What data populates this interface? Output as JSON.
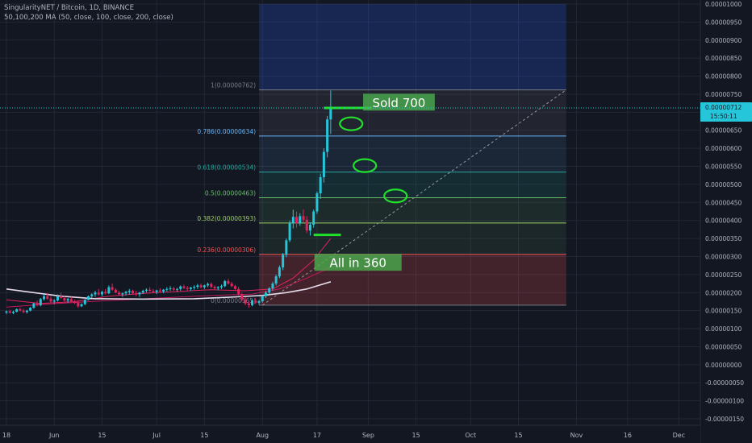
{
  "header": {
    "symbol_line": "SingularityNET / Bitcoin, 1D, BINANCE",
    "ma_line": "50,100,200 MA (50, close, 100, close, 200, close)"
  },
  "price_tag": {
    "value": "0.00000712",
    "countdown": "15:50:11"
  },
  "colors": {
    "background": "#131722",
    "grid": "#222736",
    "up": "#26c6da",
    "down": "#e0245e",
    "annotation": "#22e02c",
    "price_line": "#26c6da"
  },
  "chart_data": {
    "type": "candlestick",
    "y_axis": {
      "min": -1.5e-06,
      "max": 1e-05,
      "ticks": [
        "0.00001000",
        "0.00000950",
        "0.00000900",
        "0.00000850",
        "0.00000800",
        "0.00000750",
        "0.00000700",
        "0.00000650",
        "0.00000600",
        "0.00000550",
        "0.00000500",
        "0.00000450",
        "0.00000400",
        "0.00000350",
        "0.00000300",
        "0.00000250",
        "0.00000200",
        "0.00000150",
        "0.00000100",
        "0.00000050",
        "0.00000000",
        "-0.00000050",
        "-0.00000100",
        "-0.00000150"
      ]
    },
    "x_axis": {
      "ticks": [
        {
          "label": "18",
          "day": 0
        },
        {
          "label": "Jun",
          "day": 14
        },
        {
          "label": "15",
          "day": 28
        },
        {
          "label": "Jul",
          "day": 44
        },
        {
          "label": "15",
          "day": 58
        },
        {
          "label": "Aug",
          "day": 75
        },
        {
          "label": "17",
          "day": 91
        },
        {
          "label": "Sep",
          "day": 106
        },
        {
          "label": "15",
          "day": 120
        },
        {
          "label": "Oct",
          "day": 136
        },
        {
          "label": "15",
          "day": 150
        },
        {
          "label": "Nov",
          "day": 167
        },
        {
          "label": "16",
          "day": 182
        },
        {
          "label": "Dec",
          "day": 197
        }
      ]
    },
    "candles": [
      [
        1.45e-06,
        1.5e-06,
        1.4e-06,
        1.48e-06
      ],
      [
        1.48e-06,
        1.52e-06,
        1.42e-06,
        1.44e-06
      ],
      [
        1.44e-06,
        1.5e-06,
        1.4e-06,
        1.47e-06
      ],
      [
        1.47e-06,
        1.56e-06,
        1.45e-06,
        1.54e-06
      ],
      [
        1.54e-06,
        1.58e-06,
        1.48e-06,
        1.5e-06
      ],
      [
        1.5e-06,
        1.55e-06,
        1.43e-06,
        1.46e-06
      ],
      [
        1.46e-06,
        1.52e-06,
        1.42e-06,
        1.5e-06
      ],
      [
        1.5e-06,
        1.6e-06,
        1.48e-06,
        1.58e-06
      ],
      [
        1.58e-06,
        1.72e-06,
        1.55e-06,
        1.7e-06
      ],
      [
        1.7e-06,
        1.78e-06,
        1.62e-06,
        1.65e-06
      ],
      [
        1.65e-06,
        1.85e-06,
        1.62e-06,
        1.82e-06
      ],
      [
        1.82e-06,
        1.95e-06,
        1.78e-06,
        1.9e-06
      ],
      [
        1.9e-06,
        1.98e-06,
        1.8e-06,
        1.83e-06
      ],
      [
        1.83e-06,
        1.9e-06,
        1.72e-06,
        1.75e-06
      ],
      [
        1.75e-06,
        1.82e-06,
        1.68e-06,
        1.78e-06
      ],
      [
        1.78e-06,
        1.95e-06,
        1.75e-06,
        1.9e-06
      ],
      [
        1.9e-06,
        2e-06,
        1.82e-06,
        1.85e-06
      ],
      [
        1.85e-06,
        1.9e-06,
        1.75e-06,
        1.78e-06
      ],
      [
        1.78e-06,
        1.85e-06,
        1.72e-06,
        1.82e-06
      ],
      [
        1.82e-06,
        1.88e-06,
        1.74e-06,
        1.76e-06
      ],
      [
        1.76e-06,
        1.8e-06,
        1.68e-06,
        1.72e-06
      ],
      [
        1.72e-06,
        1.78e-06,
        1.58e-06,
        1.62e-06
      ],
      [
        1.62e-06,
        1.7e-06,
        1.6e-06,
        1.68e-06
      ],
      [
        1.68e-06,
        1.82e-06,
        1.65e-06,
        1.8e-06
      ],
      [
        1.8e-06,
        1.92e-06,
        1.78e-06,
        1.9e-06
      ],
      [
        1.9e-06,
        1.98e-06,
        1.85e-06,
        1.95e-06
      ],
      [
        1.95e-06,
        2.05e-06,
        1.88e-06,
        2e-06
      ],
      [
        2e-06,
        2.1e-06,
        1.92e-06,
        1.95e-06
      ],
      [
        1.95e-06,
        2.05e-06,
        1.9e-06,
        2.02e-06
      ],
      [
        2.02e-06,
        2.1e-06,
        1.95e-06,
        1.98e-06
      ],
      [
        1.98e-06,
        2.2e-06,
        1.96e-06,
        2.15e-06
      ],
      [
        2.15e-06,
        2.25e-06,
        2.05e-06,
        2.08e-06
      ],
      [
        2.08e-06,
        2.12e-06,
        1.98e-06,
        2e-06
      ],
      [
        2e-06,
        2.05e-06,
        1.92e-06,
        1.95e-06
      ],
      [
        1.95e-06,
        2e-06,
        1.88e-06,
        1.98e-06
      ],
      [
        1.98e-06,
        2.05e-06,
        1.92e-06,
        2.02e-06
      ],
      [
        2.02e-06,
        2.1e-06,
        1.95e-06,
        2.05e-06
      ],
      [
        2.05e-06,
        2.08e-06,
        1.95e-06,
        1.98e-06
      ],
      [
        1.98e-06,
        2.05e-06,
        1.9e-06,
        1.95e-06
      ],
      [
        1.95e-06,
        2.02e-06,
        1.88e-06,
        2e-06
      ],
      [
        2e-06,
        2.08e-06,
        1.96e-06,
        2.05e-06
      ],
      [
        2.05e-06,
        2.12e-06,
        2e-06,
        2.08e-06
      ],
      [
        2.08e-06,
        2.15e-06,
        2.02e-06,
        2.05e-06
      ],
      [
        2.05e-06,
        2.1e-06,
        1.98e-06,
        2.02e-06
      ],
      [
        2.02e-06,
        2.08e-06,
        1.96e-06,
        2.06e-06
      ],
      [
        2.06e-06,
        2.12e-06,
        2e-06,
        2.03e-06
      ],
      [
        2.03e-06,
        2.1e-06,
        1.98e-06,
        2.08e-06
      ],
      [
        2.08e-06,
        2.15e-06,
        2.03e-06,
        2.1e-06
      ],
      [
        2.1e-06,
        2.18e-06,
        2.05e-06,
        2.12e-06
      ],
      [
        2.12e-06,
        2.16e-06,
        2.05e-06,
        2.08e-06
      ],
      [
        2.08e-06,
        2.13e-06,
        2.02e-06,
        2.1e-06
      ],
      [
        2.1e-06,
        2.2e-06,
        2.05e-06,
        2.17e-06
      ],
      [
        2.17e-06,
        2.22e-06,
        2.1e-06,
        2.13e-06
      ],
      [
        2.13e-06,
        2.18e-06,
        2.06e-06,
        2.1e-06
      ],
      [
        2.1e-06,
        2.16e-06,
        2.05e-06,
        2.14e-06
      ],
      [
        2.14e-06,
        2.2e-06,
        2.08e-06,
        2.16e-06
      ],
      [
        2.16e-06,
        2.24e-06,
        2.1e-06,
        2.2e-06
      ],
      [
        2.2e-06,
        2.25e-06,
        2.12e-06,
        2.15e-06
      ],
      [
        2.15e-06,
        2.22e-06,
        2.1e-06,
        2.2e-06
      ],
      [
        2.2e-06,
        2.28e-06,
        2.15e-06,
        2.24e-06
      ],
      [
        2.24e-06,
        2.28e-06,
        2.12e-06,
        2.16e-06
      ],
      [
        2.16e-06,
        2.2e-06,
        2.08e-06,
        2.12e-06
      ],
      [
        2.12e-06,
        2.18e-06,
        2.06e-06,
        2.15e-06
      ],
      [
        2.15e-06,
        2.22e-06,
        2.1e-06,
        2.18e-06
      ],
      [
        2.18e-06,
        2.35e-06,
        2.15e-06,
        2.32e-06
      ],
      [
        2.32e-06,
        2.38e-06,
        2.22e-06,
        2.25e-06
      ],
      [
        2.25e-06,
        2.3e-06,
        2.15e-06,
        2.18e-06
      ],
      [
        2.18e-06,
        2.22e-06,
        2.06e-06,
        2.1e-06
      ],
      [
        2.1e-06,
        2.16e-06,
        1.92e-06,
        1.96e-06
      ],
      [
        1.96e-06,
        2e-06,
        1.75e-06,
        1.8e-06
      ],
      [
        1.8e-06,
        1.88e-06,
        1.65e-06,
        1.7e-06
      ],
      [
        1.7e-06,
        1.75e-06,
        1.58e-06,
        1.65e-06
      ],
      [
        1.65e-06,
        1.82e-06,
        1.62e-06,
        1.78e-06
      ],
      [
        1.78e-06,
        1.85e-06,
        1.68e-06,
        1.72e-06
      ],
      [
        1.72e-06,
        1.8e-06,
        1.66e-06,
        1.76e-06
      ],
      [
        1.76e-06,
        1.92e-06,
        1.72e-06,
        1.9e-06
      ],
      [
        1.9e-06,
        2.05e-06,
        1.85e-06,
        2e-06
      ],
      [
        2e-06,
        2.15e-06,
        1.95e-06,
        2.12e-06
      ],
      [
        2.12e-06,
        2.3e-06,
        2.05e-06,
        2.25e-06
      ],
      [
        2.25e-06,
        2.5e-06,
        2.2e-06,
        2.45e-06
      ],
      [
        2.45e-06,
        2.75e-06,
        2.4e-06,
        2.7e-06
      ],
      [
        2.7e-06,
        3.1e-06,
        2.62e-06,
        3.05e-06
      ],
      [
        3.05e-06,
        3.5e-06,
        2.98e-06,
        3.45e-06
      ],
      [
        3.45e-06,
        4e-06,
        3.4e-06,
        3.92e-06
      ],
      [
        3.92e-06,
        4.3e-06,
        3.78e-06,
        4.1e-06
      ],
      [
        4.1e-06,
        4.25e-06,
        3.8e-06,
        3.92e-06
      ],
      [
        3.92e-06,
        4.2e-06,
        3.85e-06,
        4.12e-06
      ],
      [
        4.12e-06,
        4.3e-06,
        3.95e-06,
        4.02e-06
      ],
      [
        4.02e-06,
        4.12e-06,
        3.65e-06,
        3.72e-06
      ],
      [
        3.72e-06,
        3.95e-06,
        3.58e-06,
        3.88e-06
      ],
      [
        3.88e-06,
        4.3e-06,
        3.8e-06,
        4.25e-06
      ],
      [
        4.25e-06,
        4.8e-06,
        4.18e-06,
        4.75e-06
      ],
      [
        4.75e-06,
        5.3e-06,
        4.6e-06,
        5.2e-06
      ],
      [
        5.2e-06,
        6e-06,
        5.05e-06,
        5.9e-06
      ],
      [
        5.9e-06,
        6.9e-06,
        5.75e-06,
        6.8e-06
      ],
      [
        6.8e-06,
        7.6e-06,
        6.4e-06,
        7.12e-06
      ]
    ],
    "moving_averages": [
      {
        "period": 50,
        "color": "#e0245e",
        "points": [
          [
            0,
            1.8e-06
          ],
          [
            10,
            1.7e-06
          ],
          [
            20,
            1.75e-06
          ],
          [
            30,
            1.9e-06
          ],
          [
            40,
            1.98e-06
          ],
          [
            50,
            2.03e-06
          ],
          [
            60,
            2.08e-06
          ],
          [
            70,
            2.05e-06
          ],
          [
            78,
            2.1e-06
          ],
          [
            84,
            2.4e-06
          ],
          [
            90,
            2.9e-06
          ],
          [
            95,
            3.5e-06
          ]
        ]
      },
      {
        "period": 100,
        "color": "#c2185b",
        "points": [
          [
            0,
            1.6e-06
          ],
          [
            15,
            1.7e-06
          ],
          [
            30,
            1.78e-06
          ],
          [
            45,
            1.85e-06
          ],
          [
            60,
            1.92e-06
          ],
          [
            72,
            1.96e-06
          ],
          [
            80,
            2.1e-06
          ],
          [
            88,
            2.4e-06
          ],
          [
            95,
            2.7e-06
          ]
        ]
      },
      {
        "period": 200,
        "color": "#e6d9e8",
        "points": [
          [
            0,
            2.1e-06
          ],
          [
            8,
            2e-06
          ],
          [
            16,
            1.9e-06
          ],
          [
            26,
            1.83e-06
          ],
          [
            40,
            1.82e-06
          ],
          [
            55,
            1.83e-06
          ],
          [
            65,
            1.87e-06
          ],
          [
            75,
            1.92e-06
          ],
          [
            82,
            2e-06
          ],
          [
            88,
            2.1e-06
          ],
          [
            95,
            2.3e-06
          ]
        ]
      }
    ],
    "fibonacci": {
      "start_day": 74,
      "end_day": 164,
      "levels": [
        {
          "label": "1(0.00000762)",
          "price": 7.62e-06,
          "color": "#787b86",
          "fill": "rgba(120,123,134,0.15)"
        },
        {
          "label": "0.786(0.00000634)",
          "price": 6.34e-06,
          "color": "#64b5f6",
          "fill": "rgba(100,181,246,0.10)"
        },
        {
          "label": "0.618(0.00000534)",
          "price": 5.34e-06,
          "color": "#26a69a",
          "fill": "rgba(38,166,154,0.15)"
        },
        {
          "label": "0.5(0.00000463)",
          "price": 4.63e-06,
          "color": "#66bb6a",
          "fill": "rgba(102,187,106,0.13)"
        },
        {
          "label": "0.382(0.00000393)",
          "price": 3.93e-06,
          "color": "#9ccc65",
          "fill": "rgba(102,187,106,0.10)"
        },
        {
          "label": "0.236(0.00000306)",
          "price": 3.06e-06,
          "color": "#ef5350",
          "fill": "rgba(239,83,80,0.22)"
        },
        {
          "label": "0(0.00000165)",
          "price": 1.65e-06,
          "color": "#787b86",
          "fill": null
        }
      ]
    },
    "blue_zone": {
      "start_day": 74,
      "end_day": 164,
      "from_price": 7.62e-06,
      "to_price": 1e-05
    },
    "trend_line": {
      "from": [
        75,
        1.65e-06
      ],
      "to": [
        164,
        7.62e-06
      ]
    },
    "annotations": [
      {
        "text": "Sold 700",
        "day": 115,
        "price": 7.28e-06
      },
      {
        "text": "All in 360",
        "day": 103,
        "price": 2.84e-06
      }
    ],
    "marks": [
      {
        "type": "hline",
        "from_day": 93,
        "to_day": 107,
        "price": 7.12e-06
      },
      {
        "type": "hline",
        "from_day": 90,
        "to_day": 98,
        "price": 3.6e-06
      }
    ],
    "circles": [
      {
        "day": 101,
        "price": 6.68e-06
      },
      {
        "day": 105,
        "price": 5.52e-06
      },
      {
        "day": 114,
        "price": 4.68e-06
      }
    ]
  }
}
